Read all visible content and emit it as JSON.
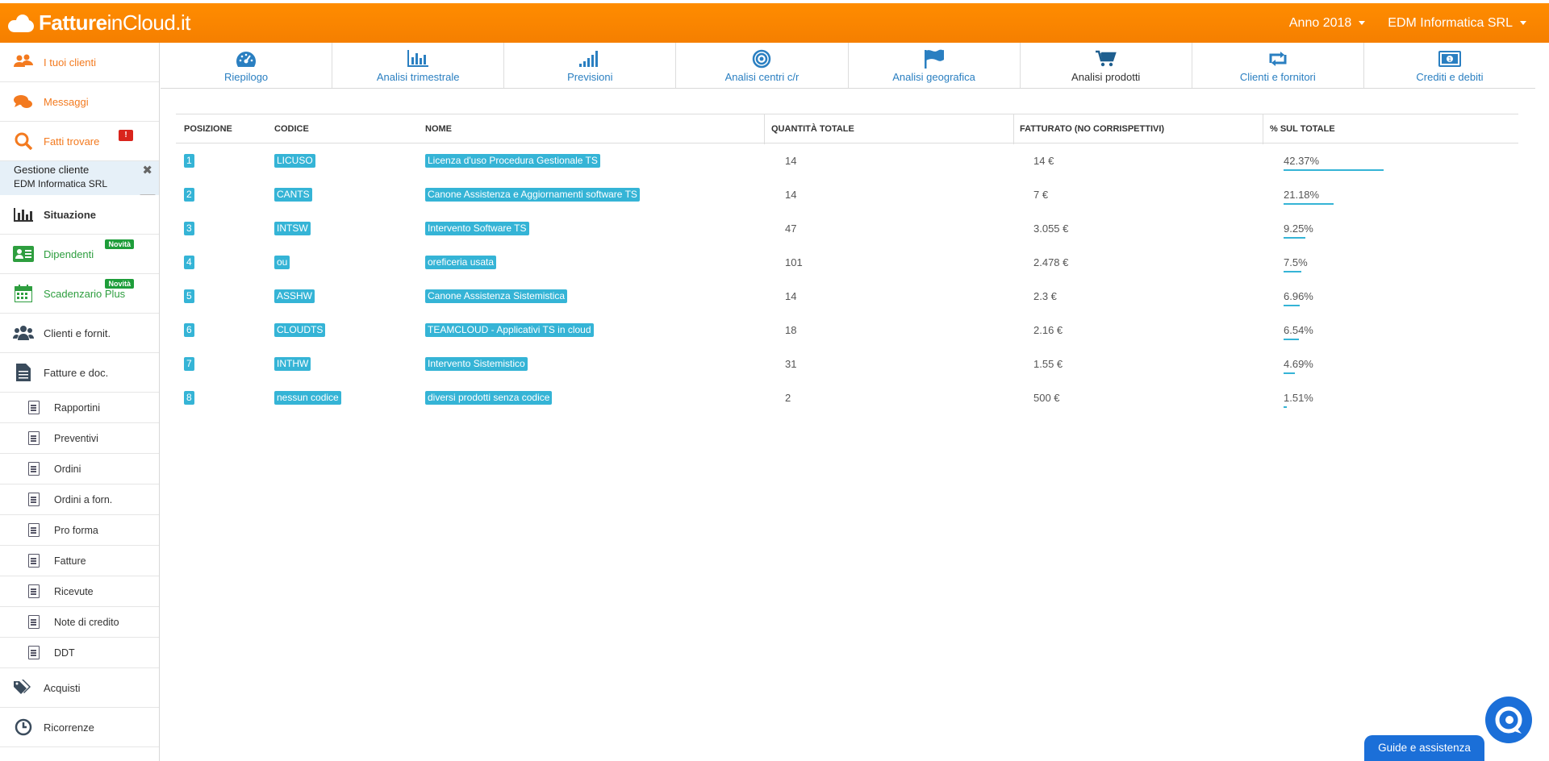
{
  "brand": {
    "part1": "Fatture",
    "part2": "inCloud.it"
  },
  "topbar": {
    "year": "Anno 2018",
    "company": "EDM Informatica SRL"
  },
  "sidebar": {
    "items_top": [
      {
        "label": "I tuoi clienti"
      },
      {
        "label": "Messaggi"
      },
      {
        "label": "Fatti trovare",
        "badge": "!"
      }
    ],
    "gestione": {
      "title": "Gestione cliente",
      "client": "EDM Informatica SRL"
    },
    "items_main": [
      {
        "label": "Situazione"
      },
      {
        "label": "Dipendenti",
        "badge": "Novità"
      },
      {
        "label": "Scadenzario Plus",
        "badge": "Novità"
      },
      {
        "label": "Clienti e fornit."
      },
      {
        "label": "Fatture e doc."
      }
    ],
    "sub_items": [
      "Rapportini",
      "Preventivi",
      "Ordini",
      "Ordini a forn.",
      "Pro forma",
      "Fatture",
      "Ricevute",
      "Note di credito",
      "DDT"
    ],
    "items_bottom": [
      {
        "label": "Acquisti"
      },
      {
        "label": "Ricorrenze"
      }
    ]
  },
  "tabs": [
    {
      "label": "Riepilogo",
      "icon": "dashboard-icon"
    },
    {
      "label": "Analisi trimestrale",
      "icon": "bar-chart-icon"
    },
    {
      "label": "Previsioni",
      "icon": "signal-icon"
    },
    {
      "label": "Analisi centri c/r",
      "icon": "target-icon"
    },
    {
      "label": "Analisi geografica",
      "icon": "flag-icon"
    },
    {
      "label": "Analisi prodotti",
      "icon": "cart-icon"
    },
    {
      "label": "Clienti e fornitori",
      "icon": "retweet-icon"
    },
    {
      "label": "Crediti e debiti",
      "icon": "money-icon"
    }
  ],
  "table": {
    "headers": [
      "POSIZIONE",
      "CODICE",
      "NOME",
      "QUANTITÀ TOTALE",
      "FATTURATO (NO CORRISPETTIVI)",
      "% SUL TOTALE"
    ],
    "rows": [
      {
        "pos": "1",
        "code": "LICUSO",
        "name": "Licenza d'uso Procedura Gestionale TS",
        "qty": "14",
        "rev": "14 €",
        "pct": "42.37%",
        "pct_value": 42.37
      },
      {
        "pos": "2",
        "code": "CANTS",
        "name": "Canone Assistenza e Aggiornamenti software TS",
        "qty": "14",
        "rev": "7 €",
        "pct": "21.18%",
        "pct_value": 21.18
      },
      {
        "pos": "3",
        "code": "INTSW",
        "name": "Intervento Software TS",
        "qty": "47",
        "rev": "3.055 €",
        "pct": "9.25%",
        "pct_value": 9.25
      },
      {
        "pos": "4",
        "code": "ou",
        "name": "oreficeria usata",
        "qty": "101",
        "rev": "2.478 €",
        "pct": "7.5%",
        "pct_value": 7.5
      },
      {
        "pos": "5",
        "code": "ASSHW",
        "name": "Canone Assistenza Sistemistica",
        "qty": "14",
        "rev": "2.3 €",
        "pct": "6.96%",
        "pct_value": 6.96
      },
      {
        "pos": "6",
        "code": "CLOUDTS",
        "name": "TEAMCLOUD - Applicativi TS in cloud",
        "qty": "18",
        "rev": "2.16 €",
        "pct": "6.54%",
        "pct_value": 6.54
      },
      {
        "pos": "7",
        "code": "INTHW",
        "name": "Intervento Sistemistico",
        "qty": "31",
        "rev": "1.55 €",
        "pct": "4.69%",
        "pct_value": 4.69
      },
      {
        "pos": "8",
        "code": "nessun codice",
        "name": "diversi prodotti senza codice",
        "qty": "2",
        "rev": "500 €",
        "pct": "1.51%",
        "pct_value": 1.51
      }
    ]
  },
  "help": {
    "guide_label": "Guide e assistenza"
  },
  "colors": {
    "orange": "#ff8c00",
    "accent_blue": "#2a7fc1",
    "tag_blue": "#35b4d6",
    "green_badge": "#1e9d3a"
  }
}
